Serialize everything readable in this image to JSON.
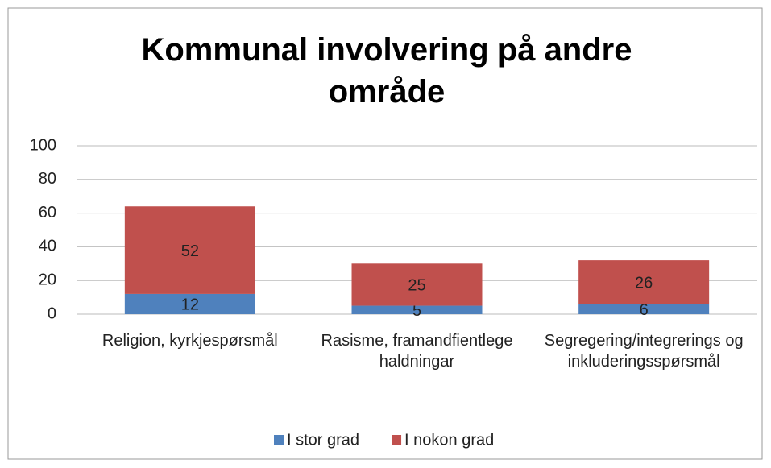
{
  "chart_data": {
    "type": "stacked_bar",
    "title": "Kommunal involvering på andre område",
    "categories": [
      "Religion, kyrkjespørsmål",
      "Rasisme, framandfientlege haldningar",
      "Segregering/integrerings og inkluderingsspørsmål"
    ],
    "series": [
      {
        "name": "I stor grad",
        "color": "#4f81bd",
        "values": [
          12,
          5,
          6
        ]
      },
      {
        "name": "I nokon grad",
        "color": "#c0504d",
        "values": [
          52,
          25,
          26
        ]
      }
    ],
    "ylim": [
      0,
      100
    ],
    "yticks": [
      0,
      20,
      40,
      60,
      80,
      100
    ],
    "grid": true,
    "legend": "bottom"
  }
}
